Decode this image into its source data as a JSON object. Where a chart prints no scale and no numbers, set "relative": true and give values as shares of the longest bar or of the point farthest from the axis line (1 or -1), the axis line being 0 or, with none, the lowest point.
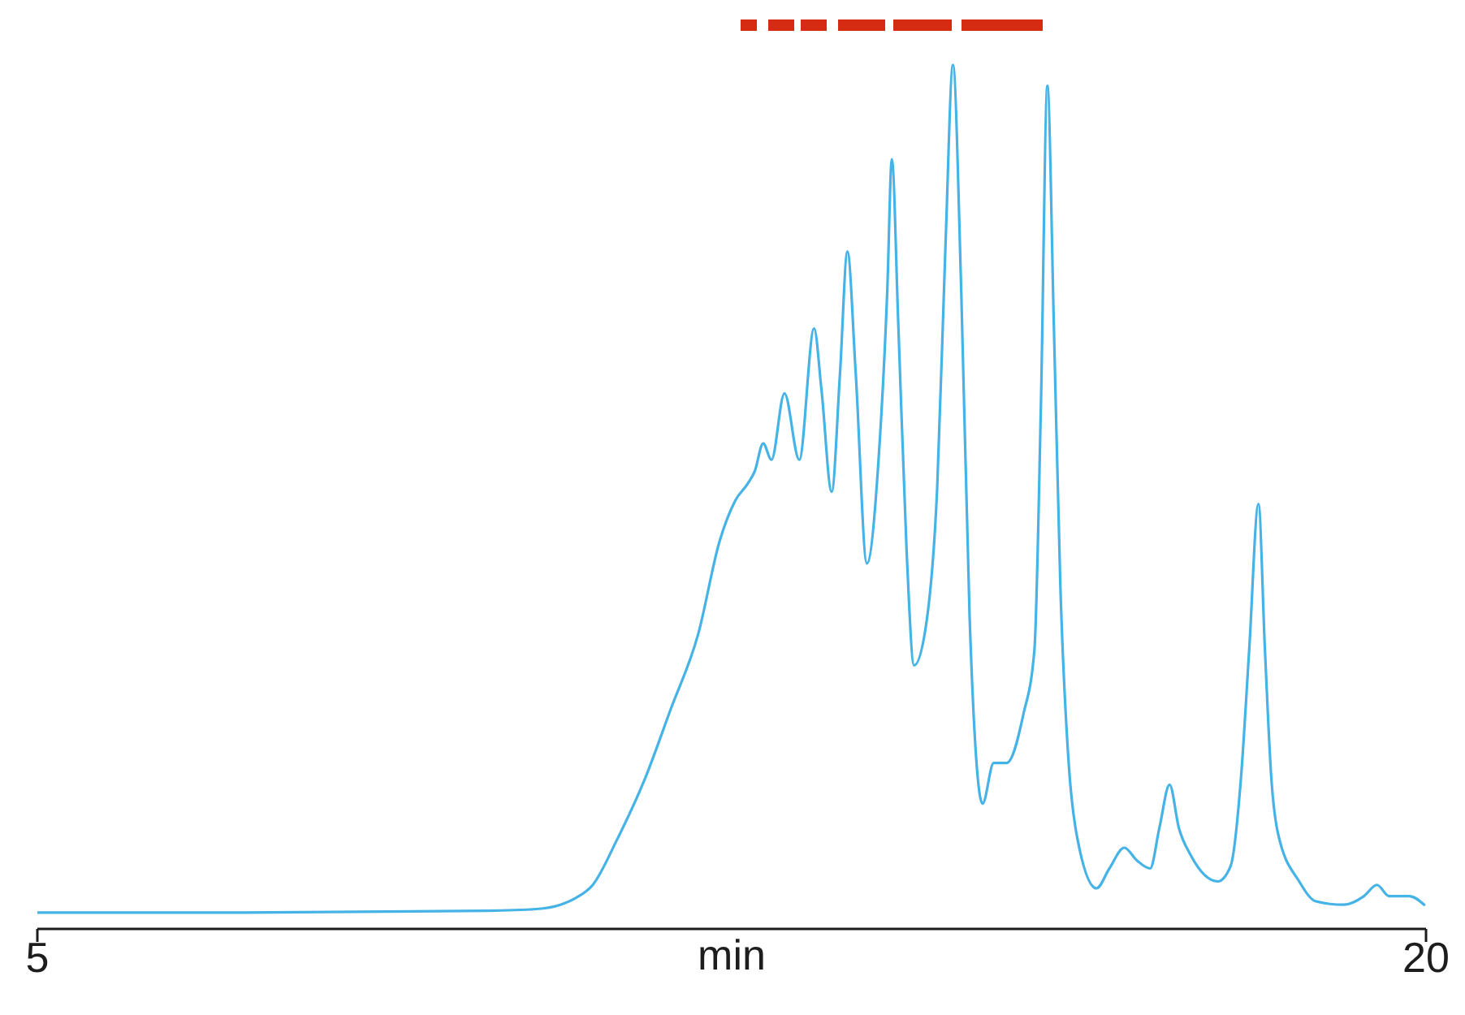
{
  "chart_data": {
    "type": "line",
    "xlabel": "min",
    "relative": true,
    "xlim": [
      5,
      20
    ],
    "xticks": [
      5,
      20
    ],
    "x": [
      5.0,
      7.23,
      9.86,
      10.39,
      10.65,
      10.82,
      11.0,
      11.26,
      11.56,
      11.84,
      12.14,
      12.37,
      12.54,
      12.67,
      12.75,
      12.84,
      12.93,
      13.07,
      13.23,
      13.39,
      13.47,
      13.58,
      13.67,
      13.75,
      13.84,
      13.96,
      14.09,
      14.18,
      14.23,
      14.3,
      14.39,
      14.47,
      14.6,
      14.72,
      14.81,
      14.89,
      14.98,
      15.07,
      15.21,
      15.33,
      15.47,
      15.65,
      15.77,
      15.84,
      15.91,
      15.98,
      16.05,
      16.14,
      16.23,
      16.44,
      16.58,
      16.74,
      16.88,
      17.02,
      17.12,
      17.23,
      17.33,
      17.46,
      17.75,
      17.89,
      18.0,
      18.09,
      18.19,
      18.26,
      18.33,
      18.4,
      18.63,
      18.81,
      19.11,
      19.33,
      19.47,
      19.6,
      19.82,
      19.98
    ],
    "series": [
      {
        "color": "#45b3e6",
        "values": [
          0.019,
          0.019,
          0.021,
          0.023,
          0.028,
          0.036,
          0.051,
          0.103,
          0.173,
          0.254,
          0.342,
          0.449,
          0.496,
          0.515,
          0.53,
          0.562,
          0.543,
          0.62,
          0.543,
          0.695,
          0.624,
          0.506,
          0.643,
          0.784,
          0.643,
          0.423,
          0.549,
          0.737,
          0.891,
          0.699,
          0.436,
          0.305,
          0.352,
          0.511,
          0.793,
          1,
          0.737,
          0.361,
          0.145,
          0.192,
          0.192,
          0.248,
          0.323,
          0.605,
          0.976,
          0.699,
          0.398,
          0.192,
          0.107,
          0.047,
          0.07,
          0.094,
          0.079,
          0.07,
          0.117,
          0.167,
          0.117,
          0.085,
          0.055,
          0.073,
          0.173,
          0.323,
          0.492,
          0.323,
          0.173,
          0.111,
          0.055,
          0.032,
          0.028,
          0.038,
          0.051,
          0.038,
          0.038,
          0.028
        ]
      }
    ]
  }
}
